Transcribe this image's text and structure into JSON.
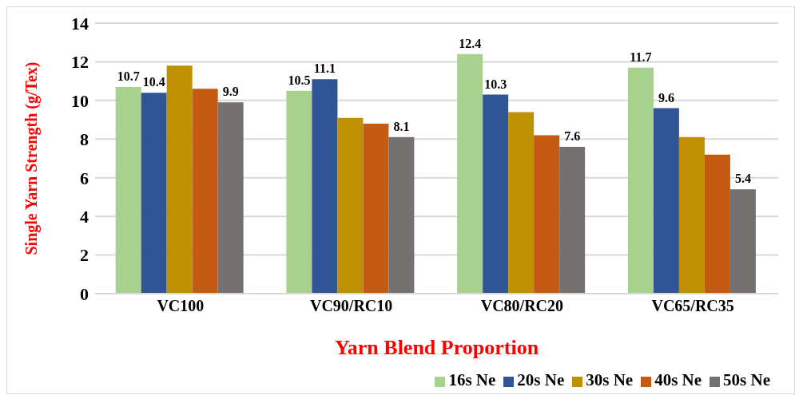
{
  "chart_data": {
    "type": "bar",
    "xlabel": "Yarn Blend Proportion",
    "ylabel": "Single Yarn Strength (g/Tex)",
    "categories": [
      "VC100",
      "VC90/RC10",
      "VC80/RC20",
      "VC65/RC35"
    ],
    "series": [
      {
        "name": "16s Ne",
        "color": "#a9d18e",
        "values": [
          10.7,
          10.5,
          12.4,
          11.7
        ],
        "value_labels": [
          "10.7",
          "10.5",
          "12.4",
          "11.7"
        ]
      },
      {
        "name": "20s Ne",
        "color": "#2f5597",
        "values": [
          10.4,
          11.1,
          10.3,
          9.6
        ],
        "value_labels": [
          "10.4",
          "11.1",
          "10.3",
          "9.6"
        ]
      },
      {
        "name": "30s Ne",
        "color": "#bf9000",
        "values": [
          11.8,
          9.1,
          9.4,
          8.1
        ]
      },
      {
        "name": "40s Ne",
        "color": "#c55a11",
        "values": [
          10.6,
          8.8,
          8.2,
          7.2
        ]
      },
      {
        "name": "50s Ne",
        "color": "#767171",
        "values": [
          9.9,
          8.1,
          7.6,
          5.4
        ],
        "value_labels": [
          "9.9",
          "8.1",
          "7.6",
          "5.4"
        ]
      }
    ],
    "ylim": [
      0,
      14
    ],
    "yticks": [
      0,
      2,
      4,
      6,
      8,
      10,
      12,
      14
    ],
    "grid": "y",
    "legend": "bottom right"
  }
}
